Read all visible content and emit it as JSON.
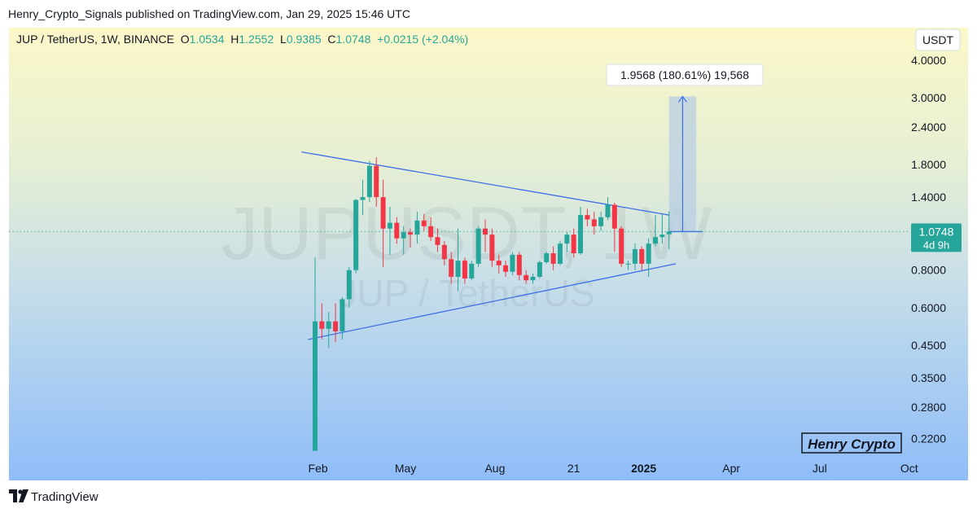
{
  "header": {
    "publisher_line": "Henry_Crypto_Signals published on TradingView.com, Jan 29, 2025 15:46 UTC"
  },
  "legend": {
    "symbol": "JUP / TetherUS, 1W, BINANCE",
    "open_label": "O",
    "open": "1.0534",
    "high_label": "H",
    "high": "1.2552",
    "low_label": "L",
    "low": "0.9385",
    "close_label": "C",
    "close": "1.0748",
    "change": "+0.0215 (+2.04%)"
  },
  "currency_button": "USDT",
  "watermark": {
    "ticker": "JUPUSDT, 1W",
    "name": "JUP / TetherUS"
  },
  "measure_label": "1.9568 (180.61%) 19,568",
  "price_tag": {
    "price": "1.0748",
    "countdown": "4d 9h"
  },
  "author_badge": "Henry Crypto",
  "footer": {
    "brand": "TradingView"
  },
  "colors": {
    "up": "#26a69a",
    "down": "#f23645",
    "trendline": "#3d6fe8",
    "measure_fill": "#b8cde3",
    "axis_text": "#131722",
    "price_line": "#26a69a"
  },
  "chart_data": {
    "type": "candlestick",
    "symbol": "JUP / TetherUS",
    "interval": "1W",
    "exchange": "BINANCE",
    "y_scale": "log",
    "y_ticks": [
      4.0,
      3.0,
      2.4,
      1.8,
      1.4,
      0.8,
      0.6,
      0.45,
      0.35,
      0.28,
      0.22
    ],
    "y_tick_labels": [
      "4.0000",
      "3.0000",
      "2.4000",
      "1.8000",
      "1.4000",
      "0.8000",
      "0.6000",
      "0.4500",
      "0.3500",
      "0.2800",
      "0.2200"
    ],
    "x_ticks": [
      {
        "label": "Feb",
        "date": "2024-02-01",
        "bold": false
      },
      {
        "label": "May",
        "date": "2024-05-01",
        "bold": false
      },
      {
        "label": "Aug",
        "date": "2024-08-01",
        "bold": false
      },
      {
        "label": "21",
        "date": "2024-10-21",
        "bold": false
      },
      {
        "label": "2025",
        "date": "2025-01-01",
        "bold": true
      },
      {
        "label": "Apr",
        "date": "2025-04-01",
        "bold": false
      },
      {
        "label": "Jul",
        "date": "2025-07-01",
        "bold": false
      },
      {
        "label": "Oct",
        "date": "2025-10-01",
        "bold": false
      }
    ],
    "candles": [
      {
        "t": "2024-01-29",
        "o": 0.2,
        "h": 0.88,
        "l": 0.2,
        "c": 0.54
      },
      {
        "t": "2024-02-05",
        "o": 0.54,
        "h": 0.62,
        "l": 0.47,
        "c": 0.51
      },
      {
        "t": "2024-02-12",
        "o": 0.51,
        "h": 0.58,
        "l": 0.44,
        "c": 0.54
      },
      {
        "t": "2024-02-19",
        "o": 0.54,
        "h": 0.62,
        "l": 0.46,
        "c": 0.5
      },
      {
        "t": "2024-02-26",
        "o": 0.5,
        "h": 0.65,
        "l": 0.47,
        "c": 0.64
      },
      {
        "t": "2024-03-04",
        "o": 0.64,
        "h": 0.82,
        "l": 0.6,
        "c": 0.8
      },
      {
        "t": "2024-03-11",
        "o": 0.8,
        "h": 1.38,
        "l": 0.78,
        "c": 1.37
      },
      {
        "t": "2024-03-18",
        "o": 1.37,
        "h": 1.6,
        "l": 1.22,
        "c": 1.4
      },
      {
        "t": "2024-03-25",
        "o": 1.4,
        "h": 1.85,
        "l": 1.35,
        "c": 1.78
      },
      {
        "t": "2024-04-01",
        "o": 1.78,
        "h": 1.9,
        "l": 1.3,
        "c": 1.4
      },
      {
        "t": "2024-04-08",
        "o": 1.4,
        "h": 1.6,
        "l": 0.82,
        "c": 1.1
      },
      {
        "t": "2024-04-15",
        "o": 1.1,
        "h": 1.3,
        "l": 0.9,
        "c": 1.15
      },
      {
        "t": "2024-04-22",
        "o": 1.15,
        "h": 1.2,
        "l": 0.98,
        "c": 1.02
      },
      {
        "t": "2024-04-29",
        "o": 1.02,
        "h": 1.12,
        "l": 0.9,
        "c": 1.07
      },
      {
        "t": "2024-05-06",
        "o": 1.07,
        "h": 1.1,
        "l": 0.95,
        "c": 1.05
      },
      {
        "t": "2024-05-13",
        "o": 1.05,
        "h": 1.25,
        "l": 0.98,
        "c": 1.17
      },
      {
        "t": "2024-05-20",
        "o": 1.17,
        "h": 1.23,
        "l": 1.08,
        "c": 1.12
      },
      {
        "t": "2024-05-27",
        "o": 1.12,
        "h": 1.2,
        "l": 1.0,
        "c": 1.03
      },
      {
        "t": "2024-06-03",
        "o": 1.03,
        "h": 1.1,
        "l": 0.92,
        "c": 0.97
      },
      {
        "t": "2024-06-10",
        "o": 0.97,
        "h": 1.0,
        "l": 0.83,
        "c": 0.87
      },
      {
        "t": "2024-06-17",
        "o": 0.87,
        "h": 0.92,
        "l": 0.72,
        "c": 0.76
      },
      {
        "t": "2024-06-24",
        "o": 0.76,
        "h": 1.1,
        "l": 0.68,
        "c": 0.86
      },
      {
        "t": "2024-07-01",
        "o": 0.86,
        "h": 0.88,
        "l": 0.72,
        "c": 0.75
      },
      {
        "t": "2024-07-08",
        "o": 0.75,
        "h": 0.86,
        "l": 0.74,
        "c": 0.84
      },
      {
        "t": "2024-07-15",
        "o": 0.84,
        "h": 1.12,
        "l": 0.82,
        "c": 1.1
      },
      {
        "t": "2024-07-22",
        "o": 1.1,
        "h": 1.18,
        "l": 0.92,
        "c": 1.05
      },
      {
        "t": "2024-07-29",
        "o": 1.05,
        "h": 1.1,
        "l": 0.82,
        "c": 0.86
      },
      {
        "t": "2024-08-05",
        "o": 0.86,
        "h": 0.9,
        "l": 0.78,
        "c": 0.83
      },
      {
        "t": "2024-08-12",
        "o": 0.83,
        "h": 0.86,
        "l": 0.76,
        "c": 0.79
      },
      {
        "t": "2024-08-19",
        "o": 0.79,
        "h": 0.92,
        "l": 0.77,
        "c": 0.9
      },
      {
        "t": "2024-08-26",
        "o": 0.9,
        "h": 0.92,
        "l": 0.74,
        "c": 0.77
      },
      {
        "t": "2024-09-02",
        "o": 0.77,
        "h": 0.8,
        "l": 0.72,
        "c": 0.74
      },
      {
        "t": "2024-09-09",
        "o": 0.74,
        "h": 0.78,
        "l": 0.72,
        "c": 0.76
      },
      {
        "t": "2024-09-16",
        "o": 0.76,
        "h": 0.86,
        "l": 0.75,
        "c": 0.85
      },
      {
        "t": "2024-09-23",
        "o": 0.85,
        "h": 0.92,
        "l": 0.84,
        "c": 0.91
      },
      {
        "t": "2024-09-30",
        "o": 0.91,
        "h": 0.96,
        "l": 0.8,
        "c": 0.84
      },
      {
        "t": "2024-10-07",
        "o": 0.84,
        "h": 1.0,
        "l": 0.83,
        "c": 0.98
      },
      {
        "t": "2024-10-14",
        "o": 0.98,
        "h": 1.07,
        "l": 0.92,
        "c": 1.05
      },
      {
        "t": "2024-10-21",
        "o": 1.05,
        "h": 1.1,
        "l": 0.88,
        "c": 0.91
      },
      {
        "t": "2024-10-28",
        "o": 0.91,
        "h": 1.3,
        "l": 0.9,
        "c": 1.22
      },
      {
        "t": "2024-11-04",
        "o": 1.22,
        "h": 1.28,
        "l": 1.12,
        "c": 1.18
      },
      {
        "t": "2024-11-11",
        "o": 1.18,
        "h": 1.25,
        "l": 1.05,
        "c": 1.12
      },
      {
        "t": "2024-11-18",
        "o": 1.12,
        "h": 1.25,
        "l": 1.08,
        "c": 1.2
      },
      {
        "t": "2024-11-25",
        "o": 1.2,
        "h": 1.4,
        "l": 1.18,
        "c": 1.32
      },
      {
        "t": "2024-12-02",
        "o": 1.32,
        "h": 1.34,
        "l": 0.92,
        "c": 1.1
      },
      {
        "t": "2024-12-09",
        "o": 1.1,
        "h": 1.12,
        "l": 0.82,
        "c": 0.84
      },
      {
        "t": "2024-12-16",
        "o": 0.84,
        "h": 0.86,
        "l": 0.8,
        "c": 0.84
      },
      {
        "t": "2024-12-23",
        "o": 0.84,
        "h": 0.98,
        "l": 0.8,
        "c": 0.94
      },
      {
        "t": "2024-12-30",
        "o": 0.94,
        "h": 0.96,
        "l": 0.8,
        "c": 0.84
      },
      {
        "t": "2025-01-06",
        "o": 0.84,
        "h": 1.02,
        "l": 0.76,
        "c": 0.98
      },
      {
        "t": "2025-01-13",
        "o": 0.98,
        "h": 1.22,
        "l": 0.96,
        "c": 1.03
      },
      {
        "t": "2025-01-20",
        "o": 1.03,
        "h": 1.23,
        "l": 0.98,
        "c": 1.05
      },
      {
        "t": "2025-01-27",
        "o": 1.0534,
        "h": 1.2552,
        "l": 0.9385,
        "c": 1.0748
      }
    ],
    "trendlines": [
      {
        "from": {
          "t": "2024-01-15",
          "p": 1.98
        },
        "to": {
          "t": "2025-01-27",
          "p": 1.22
        }
      },
      {
        "from": {
          "t": "2024-01-22",
          "p": 0.47
        },
        "to": {
          "t": "2025-02-03",
          "p": 0.84
        }
      }
    ],
    "projection": {
      "from_t": "2025-01-27",
      "to_t": "2025-02-24",
      "base": 1.0748,
      "target": 3.0316,
      "change": 1.9568,
      "percent": 180.61,
      "ticks": 19568
    },
    "last_price": 1.0748
  }
}
